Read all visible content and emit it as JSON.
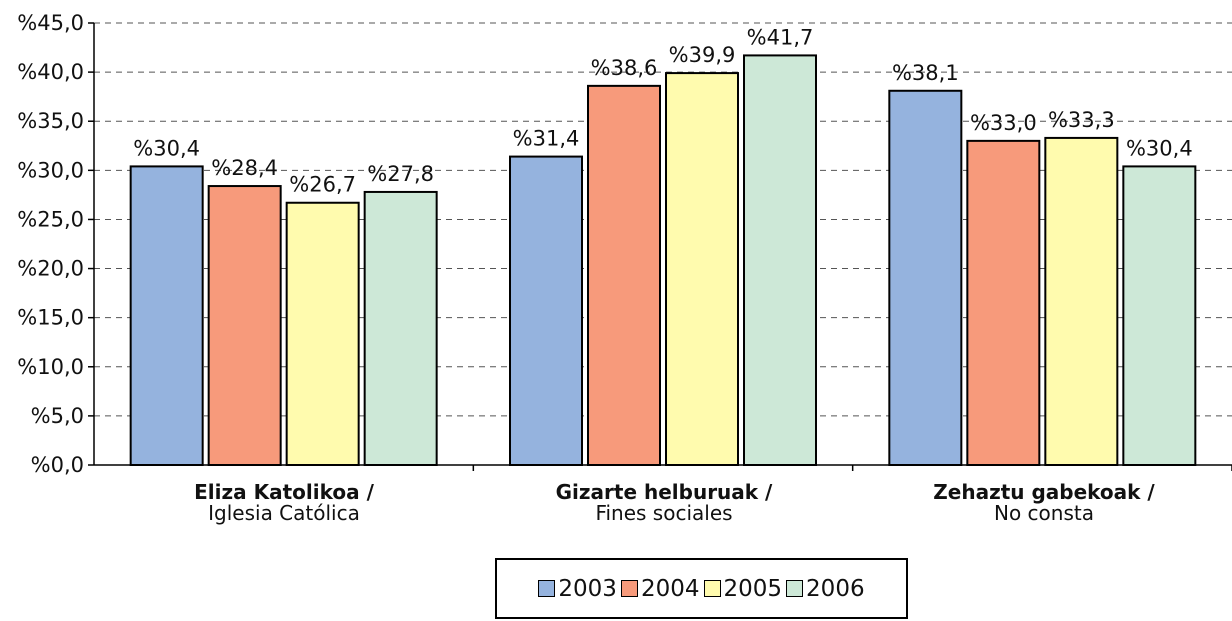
{
  "chart_data": {
    "type": "bar",
    "categories": [
      {
        "line1": "Eliza Katolikoa /",
        "line2": "Iglesia Católica"
      },
      {
        "line1": "Gizarte helburuak /",
        "line2": "Fines sociales"
      },
      {
        "line1": "Zehaztu gabekoak /",
        "line2": "No consta"
      }
    ],
    "series": [
      {
        "name": "2003",
        "color": "#95B3DE",
        "values": [
          30.4,
          31.4,
          38.1
        ],
        "labels": [
          "%30,4",
          "%31,4",
          "%38,1"
        ]
      },
      {
        "name": "2004",
        "color": "#F79A7B",
        "values": [
          28.4,
          38.6,
          33.0
        ],
        "labels": [
          "%28,4",
          "%38,6",
          "%33,0"
        ]
      },
      {
        "name": "2005",
        "color": "#FFFBAE",
        "values": [
          26.7,
          39.9,
          33.3
        ],
        "labels": [
          "%26,7",
          "%39,9",
          "%33,3"
        ]
      },
      {
        "name": "2006",
        "color": "#CDE8D7",
        "values": [
          27.8,
          41.7,
          30.4
        ],
        "labels": [
          "%27,8",
          "%41,7",
          "%30,4"
        ]
      }
    ],
    "ylim": [
      0,
      45
    ],
    "yticks": [
      0,
      5,
      10,
      15,
      20,
      25,
      30,
      35,
      40,
      45
    ],
    "ytick_labels": [
      "%0,0",
      "%5,0",
      "%10,0",
      "%15,0",
      "%20,0",
      "%25,0",
      "%30,0",
      "%35,0",
      "%40,0",
      "%45,0"
    ],
    "grid": true,
    "legend_position": "bottom"
  }
}
